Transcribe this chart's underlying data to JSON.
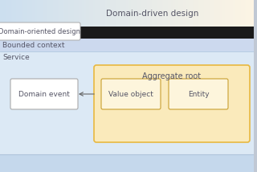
{
  "title": "Domain-driven design",
  "label_dod": "Domain-oriented design",
  "label_bc": "Bounded context",
  "label_service": "Service",
  "label_agg": "Aggregate root",
  "label_domain_event": "Domain event",
  "label_value_obj": "Value object",
  "label_entity": "Entity",
  "bg_cream": "#fdf5e4",
  "bg_blue_left": "#ccdff0",
  "bg_blue_main": "#dce9f5",
  "bg_blue_section": "#ccdaed",
  "bg_black": "#111111",
  "box_white": "#ffffff",
  "box_orange_border": "#e8b840",
  "box_orange_fill": "#faeabb",
  "box_inner_fill": "#fdf5dc",
  "text_color": "#555566",
  "font_size": 7
}
